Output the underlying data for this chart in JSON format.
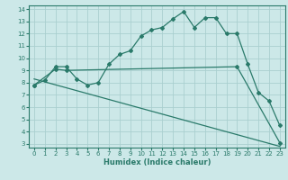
{
  "xlabel": "Humidex (Indice chaleur)",
  "bg_color": "#cce8e8",
  "grid_color": "#aacfcf",
  "line_color": "#2a7a6a",
  "xlim": [
    -0.5,
    23.5
  ],
  "ylim": [
    2.7,
    14.3
  ],
  "xticks": [
    0,
    1,
    2,
    3,
    4,
    5,
    6,
    7,
    8,
    9,
    10,
    11,
    12,
    13,
    14,
    15,
    16,
    17,
    18,
    19,
    20,
    21,
    22,
    23
  ],
  "yticks": [
    3,
    4,
    5,
    6,
    7,
    8,
    9,
    10,
    11,
    12,
    13,
    14
  ],
  "line1_x": [
    0,
    1,
    2,
    3,
    4,
    5,
    6,
    7,
    8,
    9,
    10,
    11,
    12,
    13,
    14,
    15,
    16,
    17,
    18,
    19,
    20,
    21,
    22,
    23
  ],
  "line1_y": [
    7.8,
    8.2,
    9.3,
    9.3,
    8.3,
    7.8,
    8.0,
    9.5,
    10.3,
    10.6,
    11.8,
    12.3,
    12.5,
    13.2,
    13.8,
    12.5,
    13.3,
    13.3,
    12.0,
    12.0,
    9.5,
    7.2,
    6.5,
    4.5
  ],
  "line2_x": [
    0,
    2,
    3,
    19,
    23
  ],
  "line2_y": [
    7.8,
    9.1,
    9.0,
    9.3,
    3.1
  ],
  "line3_x": [
    0,
    23
  ],
  "line3_y": [
    8.3,
    2.8
  ]
}
